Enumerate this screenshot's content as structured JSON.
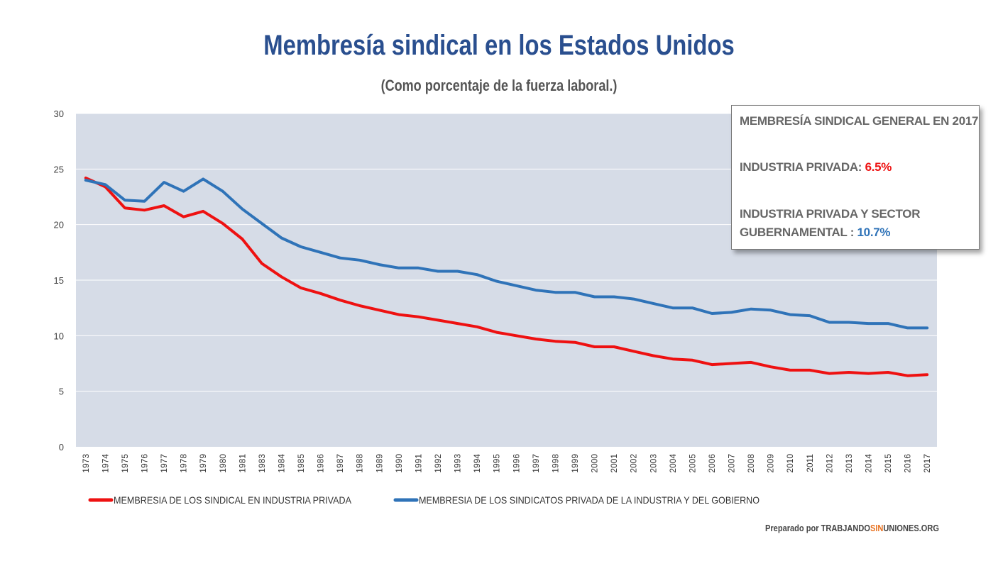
{
  "header": {
    "title": "Membresía sindical en los Estados Unidos",
    "subtitle": "(Como porcentaje de la fuerza laboral.)"
  },
  "callout": {
    "heading": "MEMBRESÍA SINDICAL GENERAL EN 2017",
    "private_label": "INDUSTRIA PRIVADA: ",
    "private_value": "6.5%",
    "combined_label_line1": "INDUSTRIA PRIVADA Y SECTOR",
    "combined_label_line2": "GUBERNAMENTAL : ",
    "combined_value": "10.7%"
  },
  "footer": {
    "prefix": "Preparado por TRABJANDO",
    "highlight": "SIN",
    "suffix": "UNIONES.ORG"
  },
  "colors": {
    "private": "#ee1111",
    "combined": "#2f73b8",
    "plot_bg": "#d6dce7",
    "grid": "#ffffff"
  },
  "chart_data": {
    "type": "line",
    "x": [
      "1973",
      "1974",
      "1975",
      "1976",
      "1977",
      "1978",
      "1979",
      "1980",
      "1981",
      "1983",
      "1984",
      "1985",
      "1986",
      "1987",
      "1988",
      "1989",
      "1990",
      "1991",
      "1992",
      "1993",
      "1994",
      "1995",
      "1996",
      "1997",
      "1998",
      "1999",
      "2000",
      "2001",
      "2002",
      "2003",
      "2004",
      "2005",
      "2006",
      "2007",
      "2008",
      "2009",
      "2010",
      "2011",
      "2012",
      "2013",
      "2014",
      "2015",
      "2016",
      "2017"
    ],
    "series": [
      {
        "name": "MEMBRESIA DE LOS SINDICAL EN INDUSTRIA PRIVADA",
        "color": "#ee1111",
        "values": [
          24.2,
          23.4,
          21.5,
          21.3,
          21.7,
          20.7,
          21.2,
          20.1,
          18.7,
          16.5,
          15.3,
          14.3,
          13.8,
          13.2,
          12.7,
          12.3,
          11.9,
          11.7,
          11.4,
          11.1,
          10.8,
          10.3,
          10.0,
          9.7,
          9.5,
          9.4,
          9.0,
          9.0,
          8.6,
          8.2,
          7.9,
          7.8,
          7.4,
          7.5,
          7.6,
          7.2,
          6.9,
          6.9,
          6.6,
          6.7,
          6.6,
          6.7,
          6.4,
          6.5
        ]
      },
      {
        "name": "MEMBRESIA DE LOS SINDICATOS PRIVADA DE LA INDUSTRIA Y DEL GOBIERNO",
        "color": "#2f73b8",
        "values": [
          24.0,
          23.6,
          22.2,
          22.1,
          23.8,
          23.0,
          24.1,
          23.0,
          21.4,
          20.1,
          18.8,
          18.0,
          17.5,
          17.0,
          16.8,
          16.4,
          16.1,
          16.1,
          15.8,
          15.8,
          15.5,
          14.9,
          14.5,
          14.1,
          13.9,
          13.9,
          13.5,
          13.5,
          13.3,
          12.9,
          12.5,
          12.5,
          12.0,
          12.1,
          12.4,
          12.3,
          11.9,
          11.8,
          11.2,
          11.2,
          11.1,
          11.1,
          10.7,
          10.7
        ]
      }
    ],
    "ylim": [
      0,
      30
    ],
    "yticks": [
      "0",
      "5",
      "10",
      "15",
      "20",
      "25",
      "30"
    ],
    "grid": true,
    "legend": "bottom-left"
  }
}
